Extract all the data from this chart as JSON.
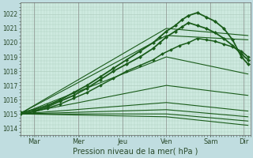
{
  "bg_color": "#c0dde0",
  "plot_bg_color": "#ceeae0",
  "grid_color": "#a8c8b8",
  "line_color": "#1a5c1a",
  "ylabel_text": "Pression niveau de la mer( hPa )",
  "ylim": [
    1013.5,
    1022.8
  ],
  "yticks": [
    1014,
    1015,
    1016,
    1017,
    1018,
    1019,
    1020,
    1021,
    1022
  ],
  "xlim": [
    0,
    5.2
  ],
  "xtick_pos": [
    0.3,
    1.3,
    2.3,
    3.3,
    4.3,
    5.05,
    5.2
  ],
  "xtick_labels": [
    "Mar",
    "Mer",
    "Jeu",
    "Ven",
    "Sam",
    "Dir",
    ""
  ],
  "vlines": [
    0.3,
    1.3,
    2.3,
    3.3,
    4.3,
    5.05
  ],
  "lines": [
    {
      "x": [
        0.0,
        0.3,
        0.6,
        0.9,
        1.2,
        1.5,
        1.8,
        2.1,
        2.4,
        2.7,
        3.0,
        3.15,
        3.3,
        3.5,
        3.65,
        3.8,
        4.0,
        4.2,
        4.4,
        4.6,
        4.8,
        5.0,
        5.15
      ],
      "y": [
        1015.1,
        1015.3,
        1015.6,
        1016.0,
        1016.5,
        1017.0,
        1017.6,
        1018.2,
        1018.8,
        1019.4,
        1020.0,
        1020.4,
        1020.8,
        1021.2,
        1021.6,
        1021.9,
        1022.1,
        1021.8,
        1021.5,
        1021.0,
        1020.2,
        1019.0,
        1018.5
      ],
      "marker": "D",
      "markersize": 2.0,
      "linewidth": 1.3
    },
    {
      "x": [
        0.0,
        0.3,
        0.6,
        0.9,
        1.2,
        1.5,
        1.8,
        2.1,
        2.4,
        2.7,
        3.0,
        3.15,
        3.3,
        3.5,
        3.65,
        3.8,
        4.0,
        4.2,
        4.4,
        4.6,
        4.8,
        5.0,
        5.15
      ],
      "y": [
        1015.0,
        1015.2,
        1015.5,
        1015.9,
        1016.3,
        1016.8,
        1017.4,
        1018.0,
        1018.5,
        1019.0,
        1019.6,
        1020.0,
        1020.4,
        1020.8,
        1021.1,
        1021.4,
        1021.2,
        1021.0,
        1020.7,
        1020.3,
        1019.8,
        1019.2,
        1018.8
      ],
      "marker": "D",
      "markersize": 2.0,
      "linewidth": 1.3
    },
    {
      "x": [
        0.0,
        0.3,
        0.6,
        0.9,
        1.2,
        1.5,
        1.8,
        2.1,
        2.4,
        2.7,
        3.0,
        3.2,
        3.4,
        3.6,
        3.8,
        4.0,
        4.2,
        4.4,
        4.6,
        4.8,
        5.0,
        5.15
      ],
      "y": [
        1015.0,
        1015.15,
        1015.4,
        1015.7,
        1016.1,
        1016.5,
        1017.0,
        1017.5,
        1018.0,
        1018.4,
        1018.8,
        1019.2,
        1019.5,
        1019.8,
        1020.0,
        1020.3,
        1020.2,
        1020.1,
        1019.9,
        1019.7,
        1019.4,
        1019.0
      ],
      "marker": "D",
      "markersize": 1.8,
      "linewidth": 1.1
    },
    {
      "x": [
        0.0,
        3.3,
        5.15
      ],
      "y": [
        1015.05,
        1021.0,
        1020.5
      ],
      "marker": null,
      "linewidth": 0.8
    },
    {
      "x": [
        0.0,
        3.3,
        5.15
      ],
      "y": [
        1015.05,
        1020.5,
        1020.2
      ],
      "marker": null,
      "linewidth": 0.8
    },
    {
      "x": [
        0.0,
        3.3,
        5.15
      ],
      "y": [
        1015.0,
        1019.0,
        1017.8
      ],
      "marker": null,
      "linewidth": 0.8
    },
    {
      "x": [
        0.0,
        3.3,
        5.15
      ],
      "y": [
        1015.0,
        1017.0,
        1016.3
      ],
      "marker": null,
      "linewidth": 0.8
    },
    {
      "x": [
        0.0,
        3.3,
        5.15
      ],
      "y": [
        1015.0,
        1015.8,
        1015.2
      ],
      "marker": null,
      "linewidth": 0.8
    },
    {
      "x": [
        0.0,
        3.3,
        5.15
      ],
      "y": [
        1015.0,
        1015.3,
        1014.8
      ],
      "marker": null,
      "linewidth": 0.8
    },
    {
      "x": [
        0.0,
        3.3,
        5.15
      ],
      "y": [
        1015.0,
        1015.0,
        1014.5
      ],
      "marker": null,
      "linewidth": 0.8
    },
    {
      "x": [
        0.0,
        3.3,
        5.15
      ],
      "y": [
        1015.0,
        1014.8,
        1014.2
      ],
      "marker": null,
      "linewidth": 0.8
    }
  ],
  "fontsize_ytick": 5.5,
  "fontsize_xtick": 6.0,
  "fontsize_xlabel": 7.0
}
